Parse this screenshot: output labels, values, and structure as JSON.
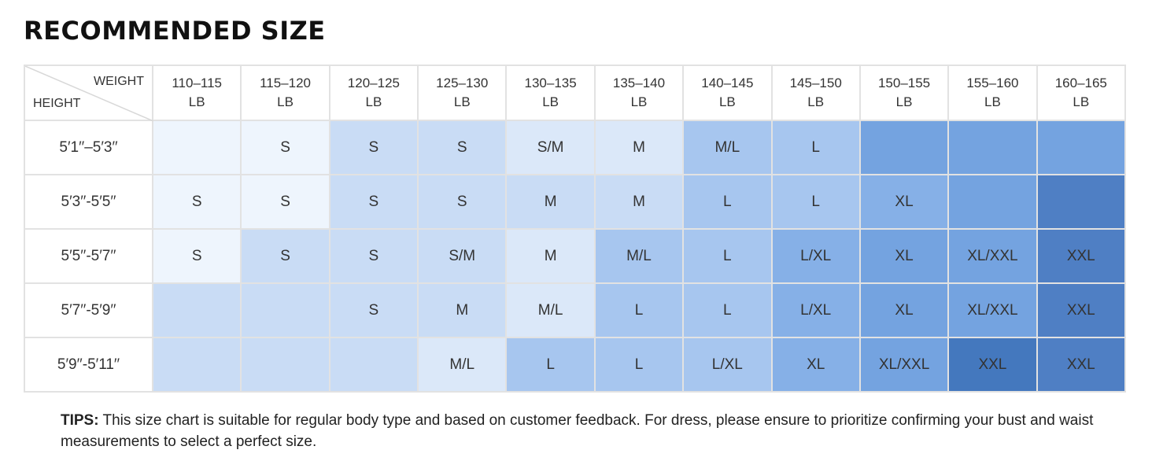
{
  "title": "RECOMMENDED SIZE",
  "table": {
    "corner": {
      "top": "WEIGHT",
      "bottom": "HEIGHT"
    },
    "columns": [
      {
        "range": "110–115",
        "unit": "LB"
      },
      {
        "range": "115–120",
        "unit": "LB"
      },
      {
        "range": "120–125",
        "unit": "LB"
      },
      {
        "range": "125–130",
        "unit": "LB"
      },
      {
        "range": "130–135",
        "unit": "LB"
      },
      {
        "range": "135–140",
        "unit": "LB"
      },
      {
        "range": "140–145",
        "unit": "LB"
      },
      {
        "range": "145–150",
        "unit": "LB"
      },
      {
        "range": "150–155",
        "unit": "LB"
      },
      {
        "range": "155–160",
        "unit": "LB"
      },
      {
        "range": "160–165",
        "unit": "LB"
      }
    ],
    "rows": [
      {
        "height": "5′1′′–5′3′′",
        "sizes": [
          null,
          "S",
          "S",
          "S",
          "S/M",
          "M",
          "M/L",
          "L",
          null,
          null,
          null
        ],
        "colors": [
          "#eef5fd",
          "#eef5fd",
          "#c9dcf5",
          "#c9dcf5",
          "#dbe8f9",
          "#dbe8f9",
          "#a7c6ef",
          "#a7c6ef",
          "#74a3e0",
          "#74a3e0",
          "#74a3e0"
        ]
      },
      {
        "height": "5′3′′-5′5′′",
        "sizes": [
          "S",
          "S",
          "S",
          "S",
          "M",
          "M",
          "L",
          "L",
          "XL",
          null,
          null
        ],
        "colors": [
          "#eef5fd",
          "#eef5fd",
          "#c9dcf5",
          "#c9dcf5",
          "#c9dcf5",
          "#c9dcf5",
          "#a7c6ef",
          "#a7c6ef",
          "#86b0e7",
          "#74a3e0",
          "#4f7fc4"
        ]
      },
      {
        "height": "5′5′′-5′7′′",
        "sizes": [
          "S",
          "S",
          "S",
          "S/M",
          "M",
          "M/L",
          "L",
          "L/XL",
          "XL",
          "XL/XXL",
          "XXL"
        ],
        "colors": [
          "#eef5fd",
          "#c9dcf5",
          "#c9dcf5",
          "#c9dcf5",
          "#dbe8f9",
          "#a7c6ef",
          "#a7c6ef",
          "#86b0e7",
          "#74a3e0",
          "#74a3e0",
          "#4f7fc4"
        ]
      },
      {
        "height": "5′7′′-5′9′′",
        "sizes": [
          null,
          null,
          "S",
          "M",
          "M/L",
          "L",
          "L",
          "L/XL",
          "XL",
          "XL/XXL",
          "XXL"
        ],
        "colors": [
          "#c9dcf5",
          "#c9dcf5",
          "#c9dcf5",
          "#c9dcf5",
          "#dbe8f9",
          "#a7c6ef",
          "#a7c6ef",
          "#86b0e7",
          "#74a3e0",
          "#74a3e0",
          "#4f7fc4"
        ]
      },
      {
        "height": "5′9′′-5′11′′",
        "sizes": [
          null,
          null,
          null,
          "M/L",
          "L",
          "L",
          "L/XL",
          "XL",
          "XL/XXL",
          "XXL",
          "XXL"
        ],
        "colors": [
          "#c9dcf5",
          "#c9dcf5",
          "#c9dcf5",
          "#dbe8f9",
          "#a7c6ef",
          "#a7c6ef",
          "#a7c6ef",
          "#86b0e7",
          "#74a3e0",
          "#4478be",
          "#4f7fc4"
        ]
      }
    ]
  },
  "tips": {
    "label": "TIPS:",
    "text": "This size chart is suitable for regular body type and based on customer feedback. For dress, please ensure to prioritize confirming your bust and waist measurements to select a perfect size."
  }
}
